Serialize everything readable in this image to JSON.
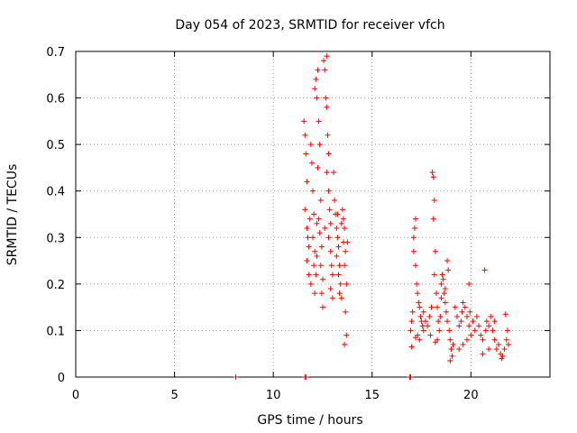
{
  "chart_data": {
    "type": "scatter",
    "title": "Day 054 of 2023, SRMTID for receiver vfch",
    "xlabel": "GPS time / hours",
    "ylabel": "SRMTID / TECUs",
    "xlim": [
      0,
      24
    ],
    "ylim": [
      0,
      0.7
    ],
    "xticks": [
      0,
      5,
      10,
      15,
      20
    ],
    "yticks": [
      0,
      0.1,
      0.2,
      0.3,
      0.4,
      0.5,
      0.6,
      0.7
    ],
    "xtick_labels": [
      "0",
      "5",
      "10",
      "15",
      "20"
    ],
    "ytick_labels": [
      "0",
      "0.1",
      "0.2",
      "0.3",
      "0.4",
      "0.5",
      "0.6",
      "0.7"
    ],
    "grid": true,
    "marker": "+",
    "color": "#ff0000",
    "series": [
      {
        "name": "vfch",
        "points": [
          [
            8.1,
            0.0
          ],
          [
            11.6,
            0.0
          ],
          [
            11.65,
            0.0
          ],
          [
            16.9,
            0.0
          ],
          [
            16.95,
            0.0
          ],
          [
            11.55,
            0.55
          ],
          [
            11.6,
            0.52
          ],
          [
            11.65,
            0.48
          ],
          [
            11.7,
            0.42
          ],
          [
            11.6,
            0.36
          ],
          [
            11.7,
            0.32
          ],
          [
            11.75,
            0.3
          ],
          [
            11.8,
            0.28
          ],
          [
            11.7,
            0.25
          ],
          [
            11.8,
            0.22
          ],
          [
            11.9,
            0.2
          ],
          [
            11.9,
            0.5
          ],
          [
            11.95,
            0.46
          ],
          [
            12.0,
            0.4
          ],
          [
            12.05,
            0.35
          ],
          [
            12.0,
            0.3
          ],
          [
            12.1,
            0.27
          ],
          [
            12.05,
            0.24
          ],
          [
            12.15,
            0.22
          ],
          [
            12.1,
            0.18
          ],
          [
            12.2,
            0.26
          ],
          [
            12.1,
            0.62
          ],
          [
            12.15,
            0.64
          ],
          [
            12.2,
            0.6
          ],
          [
            12.25,
            0.66
          ],
          [
            12.3,
            0.55
          ],
          [
            12.35,
            0.5
          ],
          [
            12.25,
            0.45
          ],
          [
            12.4,
            0.38
          ],
          [
            12.3,
            0.34
          ],
          [
            12.35,
            0.31
          ],
          [
            12.45,
            0.28
          ],
          [
            12.4,
            0.24
          ],
          [
            12.5,
            0.21
          ],
          [
            12.45,
            0.18
          ],
          [
            12.5,
            0.15
          ],
          [
            12.55,
            0.68
          ],
          [
            12.6,
            0.66
          ],
          [
            12.7,
            0.69
          ],
          [
            12.65,
            0.6
          ],
          [
            12.7,
            0.58
          ],
          [
            12.75,
            0.52
          ],
          [
            12.8,
            0.48
          ],
          [
            12.7,
            0.44
          ],
          [
            12.8,
            0.4
          ],
          [
            12.85,
            0.36
          ],
          [
            12.9,
            0.33
          ],
          [
            12.8,
            0.3
          ],
          [
            12.9,
            0.27
          ],
          [
            12.95,
            0.24
          ],
          [
            13.0,
            0.22
          ],
          [
            12.9,
            0.19
          ],
          [
            13.0,
            0.17
          ],
          [
            13.05,
            0.44
          ],
          [
            13.1,
            0.38
          ],
          [
            13.15,
            0.35
          ],
          [
            13.2,
            0.32
          ],
          [
            13.25,
            0.3
          ],
          [
            13.3,
            0.28
          ],
          [
            13.2,
            0.26
          ],
          [
            13.35,
            0.24
          ],
          [
            13.3,
            0.22
          ],
          [
            13.4,
            0.2
          ],
          [
            13.35,
            0.18
          ],
          [
            13.45,
            0.17
          ],
          [
            13.5,
            0.36
          ],
          [
            13.55,
            0.34
          ],
          [
            13.6,
            0.32
          ],
          [
            13.55,
            0.29
          ],
          [
            13.65,
            0.27
          ],
          [
            13.6,
            0.24
          ],
          [
            13.7,
            0.2
          ],
          [
            13.65,
            0.14
          ],
          [
            13.7,
            0.09
          ],
          [
            13.6,
            0.07
          ],
          [
            13.75,
            0.29
          ],
          [
            13.45,
            0.33
          ],
          [
            13.25,
            0.35
          ],
          [
            12.6,
            0.32
          ],
          [
            12.2,
            0.33
          ],
          [
            11.85,
            0.34
          ],
          [
            16.95,
            0.1
          ],
          [
            17.0,
            0.12
          ],
          [
            17.05,
            0.14
          ],
          [
            17.1,
            0.3
          ],
          [
            17.15,
            0.32
          ],
          [
            17.2,
            0.34
          ],
          [
            17.1,
            0.27
          ],
          [
            17.2,
            0.24
          ],
          [
            17.25,
            0.2
          ],
          [
            17.3,
            0.18
          ],
          [
            17.35,
            0.16
          ],
          [
            17.4,
            0.15
          ],
          [
            17.45,
            0.13
          ],
          [
            17.5,
            0.12
          ],
          [
            17.55,
            0.11
          ],
          [
            17.3,
            0.09
          ],
          [
            17.4,
            0.08
          ],
          [
            17.0,
            0.065
          ],
          [
            17.2,
            0.085
          ],
          [
            17.6,
            0.1
          ],
          [
            17.6,
            0.14
          ],
          [
            17.7,
            0.12
          ],
          [
            17.8,
            0.11
          ],
          [
            17.9,
            0.13
          ],
          [
            18.0,
            0.15
          ],
          [
            18.05,
            0.44
          ],
          [
            18.1,
            0.43
          ],
          [
            18.15,
            0.38
          ],
          [
            18.1,
            0.34
          ],
          [
            18.2,
            0.27
          ],
          [
            18.15,
            0.22
          ],
          [
            18.25,
            0.18
          ],
          [
            18.3,
            0.15
          ],
          [
            18.35,
            0.12
          ],
          [
            18.4,
            0.1
          ],
          [
            18.3,
            0.08
          ],
          [
            18.2,
            0.075
          ],
          [
            17.95,
            0.09
          ],
          [
            18.45,
            0.13
          ],
          [
            18.5,
            0.17
          ],
          [
            18.5,
            0.2
          ],
          [
            18.55,
            0.22
          ],
          [
            18.6,
            0.21
          ],
          [
            18.65,
            0.18
          ],
          [
            18.7,
            0.16
          ],
          [
            18.75,
            0.14
          ],
          [
            18.8,
            0.25
          ],
          [
            18.85,
            0.23
          ],
          [
            18.8,
            0.12
          ],
          [
            18.9,
            0.1
          ],
          [
            18.95,
            0.08
          ],
          [
            19.0,
            0.06
          ],
          [
            19.05,
            0.045
          ],
          [
            18.95,
            0.035
          ],
          [
            19.1,
            0.07
          ],
          [
            18.7,
            0.19
          ],
          [
            19.2,
            0.15
          ],
          [
            19.3,
            0.13
          ],
          [
            19.4,
            0.11
          ],
          [
            19.5,
            0.12
          ],
          [
            19.55,
            0.14
          ],
          [
            19.6,
            0.16
          ],
          [
            19.7,
            0.15
          ],
          [
            19.8,
            0.13
          ],
          [
            19.9,
            0.11
          ],
          [
            20.0,
            0.09
          ],
          [
            19.95,
            0.14
          ],
          [
            20.1,
            0.12
          ],
          [
            19.6,
            0.07
          ],
          [
            19.4,
            0.06
          ],
          [
            19.8,
            0.08
          ],
          [
            20.2,
            0.1
          ],
          [
            19.9,
            0.2
          ],
          [
            20.3,
            0.13
          ],
          [
            20.4,
            0.11
          ],
          [
            20.5,
            0.09
          ],
          [
            20.6,
            0.08
          ],
          [
            20.7,
            0.23
          ],
          [
            20.75,
            0.1
          ],
          [
            20.8,
            0.12
          ],
          [
            20.9,
            0.11
          ],
          [
            21.0,
            0.13
          ],
          [
            21.1,
            0.1
          ],
          [
            21.2,
            0.08
          ],
          [
            21.3,
            0.06
          ],
          [
            21.4,
            0.07
          ],
          [
            21.5,
            0.05
          ],
          [
            21.6,
            0.045
          ],
          [
            21.7,
            0.06
          ],
          [
            21.8,
            0.08
          ],
          [
            21.85,
            0.1
          ],
          [
            21.9,
            0.07
          ],
          [
            21.75,
            0.135
          ],
          [
            21.55,
            0.04
          ],
          [
            21.2,
            0.12
          ],
          [
            20.9,
            0.06
          ],
          [
            20.6,
            0.05
          ]
        ]
      }
    ]
  }
}
